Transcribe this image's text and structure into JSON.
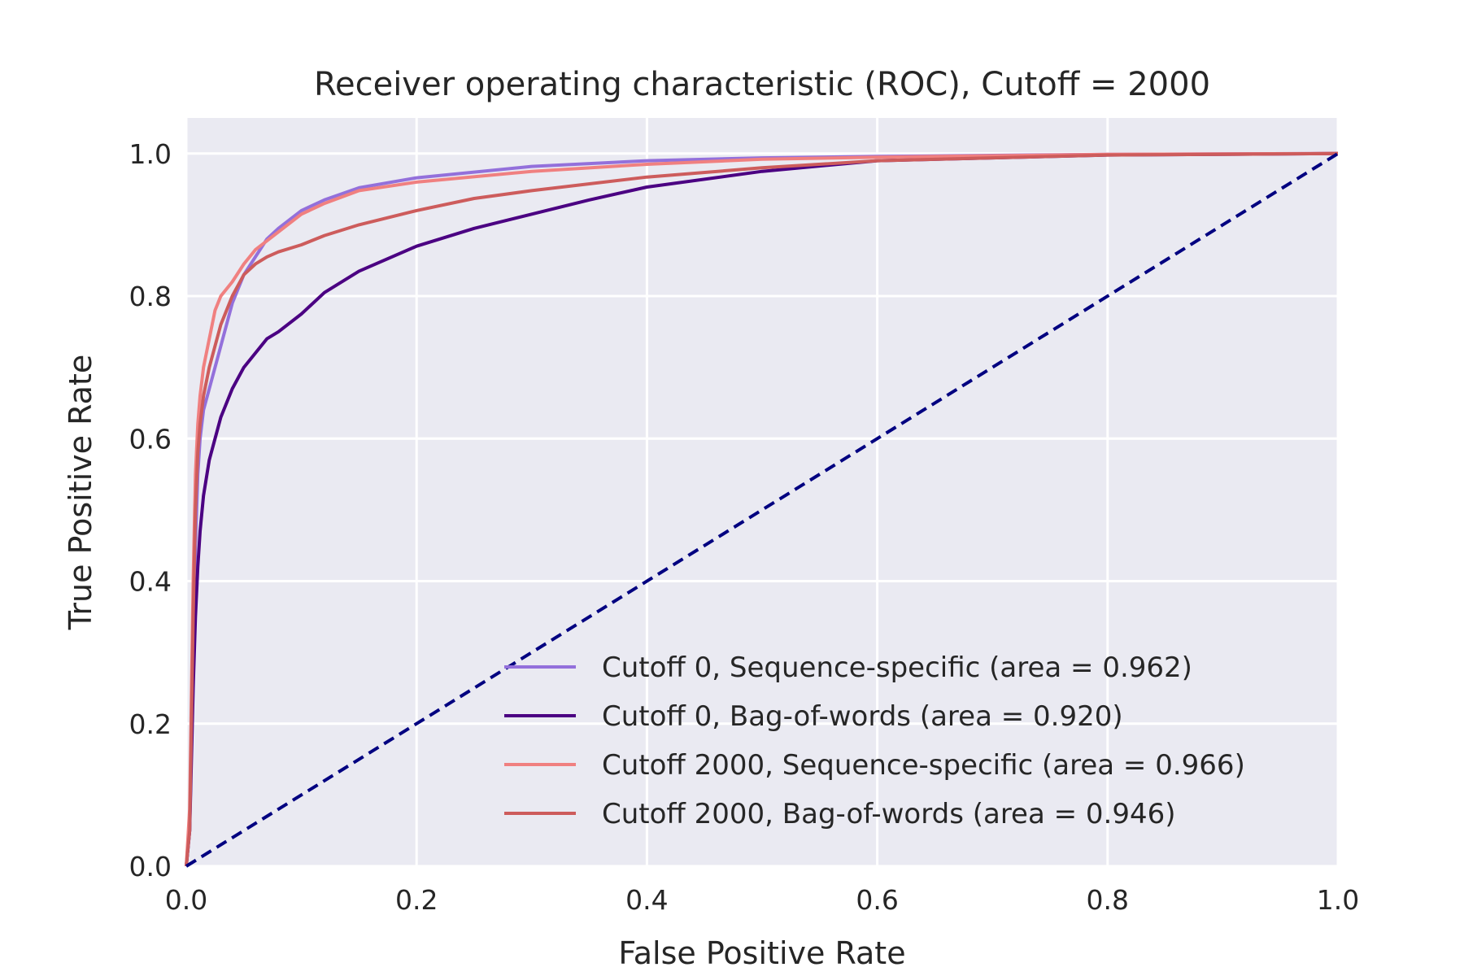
{
  "chart_data": {
    "type": "line",
    "title": "Receiver operating characteristic (ROC), Cutoff = 2000",
    "xlabel": "False Positive Rate",
    "ylabel": "True Positive Rate",
    "xlim": [
      0.0,
      1.0
    ],
    "ylim": [
      0.0,
      1.05
    ],
    "xticks": [
      "0.0",
      "0.2",
      "0.4",
      "0.6",
      "0.8",
      "1.0"
    ],
    "yticks": [
      "0.0",
      "0.2",
      "0.4",
      "0.6",
      "0.8",
      "1.0"
    ],
    "grid": true,
    "background": "#EAEAF2",
    "legend_position": "lower-right",
    "series": [
      {
        "name": "Cutoff 0, Sequence-specific (area = 0.962)",
        "color": "#9370DB",
        "x": [
          0.0,
          0.003,
          0.006,
          0.008,
          0.01,
          0.012,
          0.015,
          0.02,
          0.025,
          0.03,
          0.04,
          0.05,
          0.06,
          0.07,
          0.08,
          0.1,
          0.12,
          0.15,
          0.2,
          0.3,
          0.4,
          0.5,
          0.6,
          0.8,
          1.0
        ],
        "y": [
          0.0,
          0.05,
          0.3,
          0.45,
          0.55,
          0.6,
          0.64,
          0.67,
          0.7,
          0.73,
          0.79,
          0.83,
          0.855,
          0.88,
          0.895,
          0.92,
          0.935,
          0.952,
          0.966,
          0.982,
          0.99,
          0.994,
          0.996,
          0.999,
          1.0
        ]
      },
      {
        "name": "Cutoff 0, Bag-of-words (area = 0.920)",
        "color": "#4B0082",
        "x": [
          0.0,
          0.003,
          0.006,
          0.008,
          0.01,
          0.012,
          0.015,
          0.02,
          0.025,
          0.03,
          0.04,
          0.05,
          0.06,
          0.07,
          0.08,
          0.1,
          0.12,
          0.15,
          0.2,
          0.25,
          0.3,
          0.35,
          0.4,
          0.5,
          0.6,
          0.8,
          1.0
        ],
        "y": [
          0.0,
          0.05,
          0.25,
          0.35,
          0.42,
          0.47,
          0.52,
          0.57,
          0.6,
          0.63,
          0.67,
          0.7,
          0.72,
          0.74,
          0.75,
          0.775,
          0.805,
          0.835,
          0.87,
          0.895,
          0.915,
          0.935,
          0.953,
          0.975,
          0.99,
          0.998,
          1.0
        ]
      },
      {
        "name": "Cutoff 2000, Sequence-specific (area = 0.966)",
        "color": "#F08080",
        "x": [
          0.0,
          0.003,
          0.006,
          0.008,
          0.01,
          0.012,
          0.015,
          0.02,
          0.025,
          0.03,
          0.04,
          0.05,
          0.06,
          0.08,
          0.1,
          0.12,
          0.15,
          0.2,
          0.3,
          0.4,
          0.5,
          0.6,
          0.8,
          1.0
        ],
        "y": [
          0.0,
          0.08,
          0.4,
          0.55,
          0.62,
          0.66,
          0.7,
          0.74,
          0.78,
          0.8,
          0.82,
          0.845,
          0.865,
          0.89,
          0.915,
          0.93,
          0.948,
          0.96,
          0.975,
          0.985,
          0.992,
          0.995,
          0.999,
          1.0
        ]
      },
      {
        "name": "Cutoff 2000, Bag-of-words (area = 0.946)",
        "color": "#CD5C5C",
        "x": [
          0.0,
          0.003,
          0.006,
          0.008,
          0.01,
          0.012,
          0.015,
          0.02,
          0.025,
          0.03,
          0.04,
          0.05,
          0.06,
          0.07,
          0.08,
          0.1,
          0.12,
          0.15,
          0.2,
          0.25,
          0.3,
          0.4,
          0.5,
          0.6,
          0.8,
          1.0
        ],
        "y": [
          0.0,
          0.05,
          0.35,
          0.5,
          0.58,
          0.62,
          0.66,
          0.7,
          0.73,
          0.76,
          0.8,
          0.83,
          0.845,
          0.855,
          0.862,
          0.872,
          0.885,
          0.9,
          0.92,
          0.937,
          0.948,
          0.967,
          0.98,
          0.99,
          0.998,
          1.0
        ]
      },
      {
        "name": "",
        "color": "#000080",
        "dashed": true,
        "x": [
          0.0,
          1.0
        ],
        "y": [
          0.0,
          1.0
        ]
      }
    ]
  }
}
